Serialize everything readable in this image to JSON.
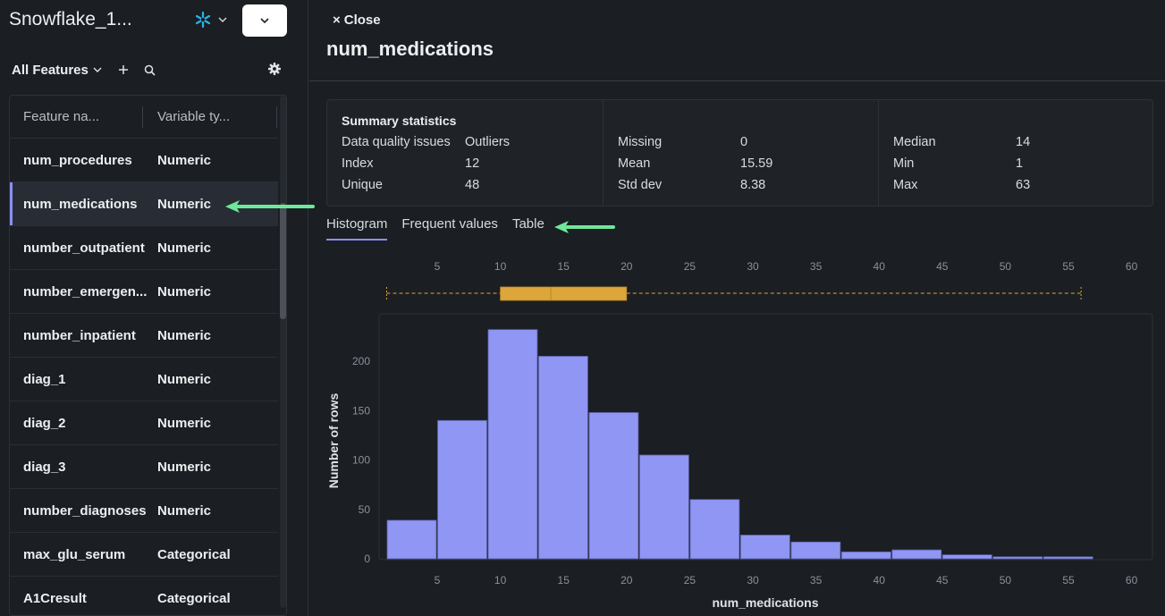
{
  "app": {
    "title": "Snowflake_1...",
    "snowflake_icon": "snowflake-icon"
  },
  "sidebar": {
    "view_label": "All Features",
    "columns": [
      "Feature na...",
      "Variable ty..."
    ],
    "rows": [
      {
        "name": "num_procedures",
        "type": "Numeric"
      },
      {
        "name": "num_medications",
        "type": "Numeric",
        "selected": true
      },
      {
        "name": "number_outpatient",
        "type": "Numeric"
      },
      {
        "name": "number_emergen...",
        "type": "Numeric"
      },
      {
        "name": "number_inpatient",
        "type": "Numeric"
      },
      {
        "name": "diag_1",
        "type": "Numeric"
      },
      {
        "name": "diag_2",
        "type": "Numeric"
      },
      {
        "name": "diag_3",
        "type": "Numeric"
      },
      {
        "name": "number_diagnoses",
        "type": "Numeric"
      },
      {
        "name": "max_glu_serum",
        "type": "Categorical"
      },
      {
        "name": "A1Cresult",
        "type": "Categorical"
      }
    ]
  },
  "panel": {
    "close_label": "Close",
    "feature_title": "num_medications",
    "summary": {
      "title": "Summary statistics",
      "col1": [
        {
          "label": "Data quality issues",
          "value": "Outliers"
        },
        {
          "label": "Index",
          "value": "12"
        },
        {
          "label": "Unique",
          "value": "48"
        }
      ],
      "col2": [
        {
          "label": "Missing",
          "value": "0"
        },
        {
          "label": "Mean",
          "value": "15.59"
        },
        {
          "label": "Std dev",
          "value": "8.38"
        }
      ],
      "col3": [
        {
          "label": "Median",
          "value": "14"
        },
        {
          "label": "Min",
          "value": "1"
        },
        {
          "label": "Max",
          "value": "63"
        }
      ]
    },
    "tabs": [
      {
        "label": "Histogram",
        "active": true
      },
      {
        "label": "Frequent values"
      },
      {
        "label": "Table"
      }
    ]
  },
  "colors": {
    "bar": "#8f96f3",
    "box": "#dca63a",
    "accent": "#8b8ff0",
    "arrow": "#6ee89a"
  },
  "chart_data": {
    "type": "bar",
    "title": "",
    "xlabel": "num_medications",
    "ylabel": "Number of rows",
    "xlim": [
      1,
      61
    ],
    "ylim": [
      0,
      245
    ],
    "x_ticks": [
      5,
      10,
      15,
      20,
      25,
      30,
      35,
      40,
      45,
      50,
      55,
      60
    ],
    "y_ticks": [
      0,
      50,
      100,
      150,
      200
    ],
    "bin_edges": [
      1,
      5,
      9,
      13,
      17,
      21,
      25,
      29,
      33,
      37,
      41,
      45,
      49,
      53,
      57
    ],
    "values": [
      39,
      140,
      232,
      205,
      148,
      105,
      60,
      24,
      17,
      7,
      9,
      4,
      2,
      2
    ],
    "boxplot": {
      "whisker_low": 1,
      "q1": 10,
      "median": 14,
      "q3": 20,
      "whisker_high": 56
    }
  }
}
